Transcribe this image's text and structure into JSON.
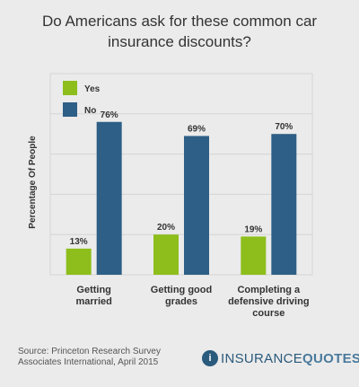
{
  "chart_data": {
    "type": "bar",
    "title": "Do Americans ask for these common car insurance discounts?",
    "ylabel": "Percentage Of People",
    "ylim": [
      0,
      100
    ],
    "grid": true,
    "legend_placement": "top-left",
    "categories": [
      [
        "Getting",
        "married"
      ],
      [
        "Getting good",
        "grades"
      ],
      [
        "Completing a",
        "defensive driving",
        "course"
      ]
    ],
    "series": [
      {
        "name": "Yes",
        "color": "#8dbe1c",
        "values": [
          13,
          20,
          19
        ],
        "labels": [
          "13%",
          "20%",
          "19%"
        ]
      },
      {
        "name": "No",
        "color": "#2e5f86",
        "values": [
          76,
          69,
          70
        ],
        "labels": [
          "76%",
          "69%",
          "70%"
        ]
      }
    ]
  },
  "footer": {
    "source_line1": "Source: Princeton Research Survey",
    "source_line2": "Associates International, April 2015",
    "logo_mark": "i",
    "logo_text_a": "INSURANCE",
    "logo_text_b": "QUOTES"
  }
}
